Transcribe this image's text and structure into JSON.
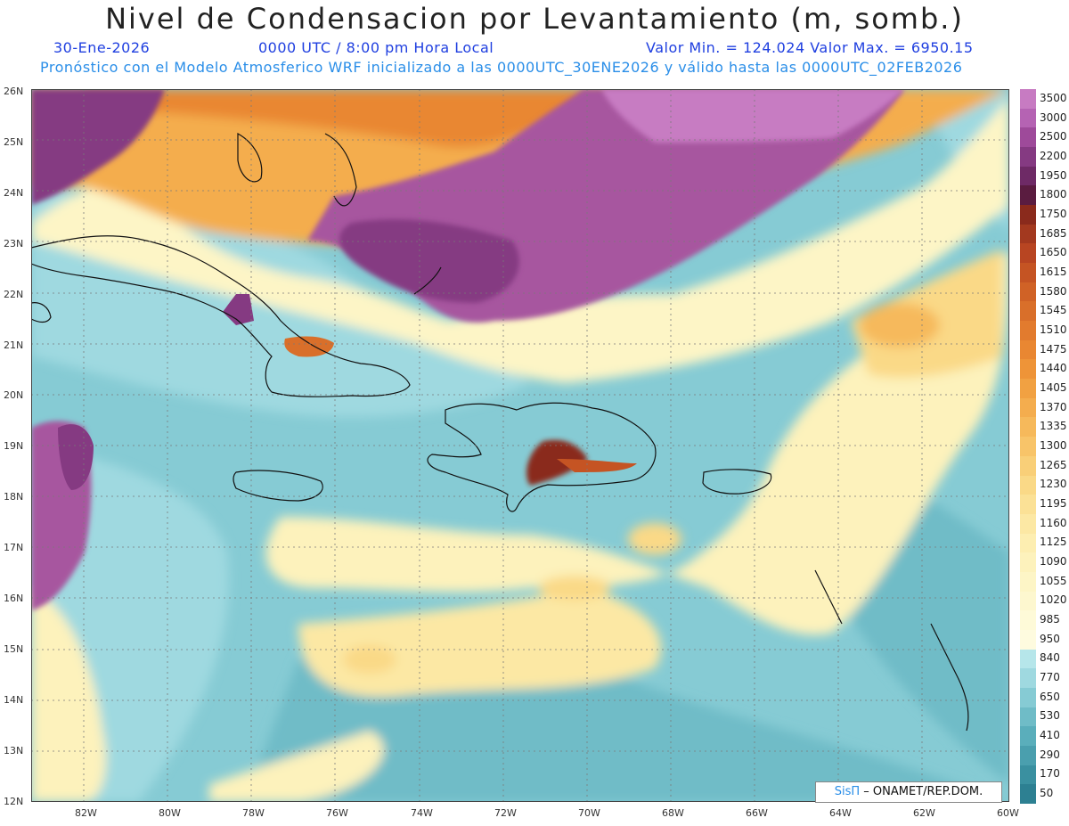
{
  "header": {
    "title": "Nivel de Condensacion por Levantamiento (m, somb.)",
    "date": "30-Ene-2026",
    "time": "0000 UTC / 8:00 pm Hora Local",
    "minmax": "Valor Min. = 124.024  Valor Max. = 6950.15",
    "model_info": "Pronóstico con el Modelo Atmosferico WRF inicializado a las 0000UTC_30ENE2026 y válido hasta las  0000UTC_02FEB2026"
  },
  "map": {
    "lon_labels": [
      "82W",
      "80W",
      "78W",
      "76W",
      "74W",
      "72W",
      "70W",
      "68W",
      "66W",
      "64W",
      "62W",
      "60W"
    ],
    "lat_labels": [
      "26N",
      "25N",
      "24N",
      "23N",
      "22N",
      "21N",
      "20N",
      "19N",
      "18N",
      "17N",
      "16N",
      "15N",
      "14N",
      "13N",
      "12N"
    ],
    "lon_range": [
      -83.2,
      -60
    ],
    "lat_range": [
      12,
      26
    ]
  },
  "legend": {
    "levels": [
      "3500",
      "3000",
      "2500",
      "2200",
      "1950",
      "1800",
      "1750",
      "1685",
      "1650",
      "1615",
      "1580",
      "1545",
      "1510",
      "1475",
      "1440",
      "1405",
      "1370",
      "1335",
      "1300",
      "1265",
      "1230",
      "1195",
      "1160",
      "1125",
      "1090",
      "1055",
      "1020",
      "985",
      "950",
      "840",
      "770",
      "650",
      "530",
      "410",
      "290",
      "170",
      "50"
    ],
    "colors": [
      "#c77bc2",
      "#b563b3",
      "#9e4a9a",
      "#853a82",
      "#6e2a66",
      "#5a1c40",
      "#8a2a1c",
      "#a3391f",
      "#b84522",
      "#c55423",
      "#d06226",
      "#d96f2a",
      "#e27b2e",
      "#e98732",
      "#ee9438",
      "#f1a142",
      "#f4ad4e",
      "#f6b95b",
      "#f8c469",
      "#f9cf78",
      "#fad987",
      "#fbe196",
      "#fce8a4",
      "#fdeeb1",
      "#fdf2bc",
      "#fdf5c6",
      "#fdf7cf",
      "#fefad8",
      "#fefbdf",
      "#b6e6ea",
      "#9fd9e0",
      "#86cbd4",
      "#6fbcc7",
      "#5aaebb",
      "#4a9fae",
      "#3a90a0",
      "#2d8092"
    ]
  },
  "credit": {
    "brand": "SisΠ",
    "text": " – ONAMET/REP.DOM."
  }
}
